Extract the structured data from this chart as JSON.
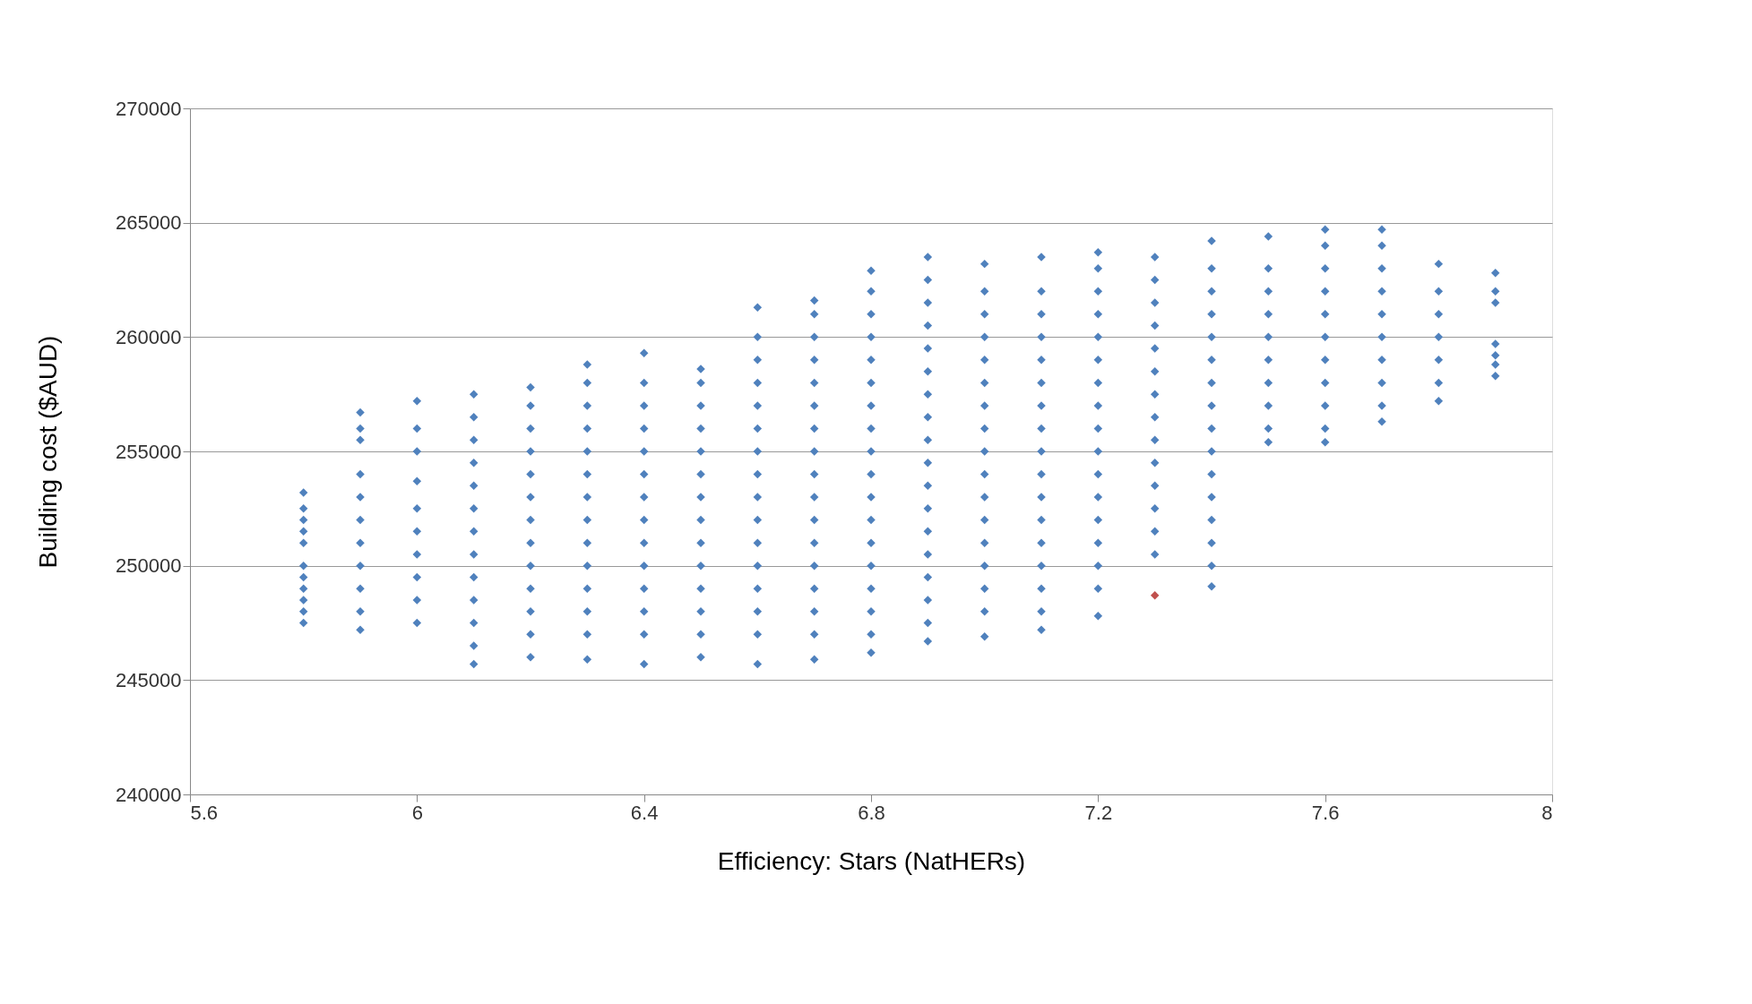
{
  "chart_data": {
    "type": "scatter",
    "xlabel": "Efficiency: Stars        (NatHERs)",
    "ylabel": "Building cost        ($AUD)",
    "xlim": [
      5.6,
      8
    ],
    "xticks": [
      5.6,
      6,
      6.4,
      6.8,
      7.2,
      7.6,
      8
    ],
    "ylim": [
      240000,
      270000
    ],
    "yticks": [
      240000,
      245000,
      250000,
      255000,
      260000,
      265000,
      270000
    ],
    "grid": "y",
    "legend": false,
    "marker": "diamond",
    "series": [
      {
        "color": "#4f81bd",
        "x": [
          5.8,
          5.8,
          5.8,
          5.8,
          5.8,
          5.8,
          5.8,
          5.8,
          5.8,
          5.8,
          5.8,
          5.9,
          5.9,
          5.9,
          5.9,
          5.9,
          5.9,
          5.9,
          5.9,
          5.9,
          5.9,
          5.9,
          6.0,
          6.0,
          6.0,
          6.0,
          6.0,
          6.0,
          6.0,
          6.0,
          6.0,
          6.0,
          6.1,
          6.1,
          6.1,
          6.1,
          6.1,
          6.1,
          6.1,
          6.1,
          6.1,
          6.1,
          6.1,
          6.1,
          6.1,
          6.2,
          6.2,
          6.2,
          6.2,
          6.2,
          6.2,
          6.2,
          6.2,
          6.2,
          6.2,
          6.2,
          6.2,
          6.2,
          6.3,
          6.3,
          6.3,
          6.3,
          6.3,
          6.3,
          6.3,
          6.3,
          6.3,
          6.3,
          6.3,
          6.3,
          6.3,
          6.3,
          6.4,
          6.4,
          6.4,
          6.4,
          6.4,
          6.4,
          6.4,
          6.4,
          6.4,
          6.4,
          6.4,
          6.4,
          6.4,
          6.4,
          6.5,
          6.5,
          6.5,
          6.5,
          6.5,
          6.5,
          6.5,
          6.5,
          6.5,
          6.5,
          6.5,
          6.5,
          6.5,
          6.5,
          6.6,
          6.6,
          6.6,
          6.6,
          6.6,
          6.6,
          6.6,
          6.6,
          6.6,
          6.6,
          6.6,
          6.6,
          6.6,
          6.6,
          6.6,
          6.6,
          6.7,
          6.7,
          6.7,
          6.7,
          6.7,
          6.7,
          6.7,
          6.7,
          6.7,
          6.7,
          6.7,
          6.7,
          6.7,
          6.7,
          6.7,
          6.7,
          6.7,
          6.8,
          6.8,
          6.8,
          6.8,
          6.8,
          6.8,
          6.8,
          6.8,
          6.8,
          6.8,
          6.8,
          6.8,
          6.8,
          6.8,
          6.8,
          6.8,
          6.8,
          6.8,
          6.9,
          6.9,
          6.9,
          6.9,
          6.9,
          6.9,
          6.9,
          6.9,
          6.9,
          6.9,
          6.9,
          6.9,
          6.9,
          6.9,
          6.9,
          6.9,
          6.9,
          6.9,
          7.0,
          7.0,
          7.0,
          7.0,
          7.0,
          7.0,
          7.0,
          7.0,
          7.0,
          7.0,
          7.0,
          7.0,
          7.0,
          7.0,
          7.0,
          7.0,
          7.0,
          7.1,
          7.1,
          7.1,
          7.1,
          7.1,
          7.1,
          7.1,
          7.1,
          7.1,
          7.1,
          7.1,
          7.1,
          7.1,
          7.1,
          7.1,
          7.1,
          7.1,
          7.2,
          7.2,
          7.2,
          7.2,
          7.2,
          7.2,
          7.2,
          7.2,
          7.2,
          7.2,
          7.2,
          7.2,
          7.2,
          7.2,
          7.2,
          7.2,
          7.2,
          7.3,
          7.3,
          7.3,
          7.3,
          7.3,
          7.3,
          7.3,
          7.3,
          7.3,
          7.3,
          7.3,
          7.3,
          7.3,
          7.3,
          7.4,
          7.4,
          7.4,
          7.4,
          7.4,
          7.4,
          7.4,
          7.4,
          7.4,
          7.4,
          7.4,
          7.4,
          7.4,
          7.4,
          7.4,
          7.4,
          7.5,
          7.5,
          7.5,
          7.5,
          7.5,
          7.5,
          7.5,
          7.5,
          7.5,
          7.5,
          7.6,
          7.6,
          7.6,
          7.6,
          7.6,
          7.6,
          7.6,
          7.6,
          7.6,
          7.6,
          7.6,
          7.7,
          7.7,
          7.7,
          7.7,
          7.7,
          7.7,
          7.7,
          7.7,
          7.7,
          7.7,
          7.8,
          7.8,
          7.8,
          7.8,
          7.8,
          7.8,
          7.8,
          7.9,
          7.9,
          7.9,
          7.9,
          7.9,
          7.9,
          7.9
        ],
        "values": [
          247500,
          248000,
          248500,
          249000,
          249500,
          250000,
          251000,
          251500,
          252000,
          252500,
          253200,
          247200,
          248000,
          249000,
          250000,
          251000,
          252000,
          253000,
          254000,
          255500,
          256000,
          256700,
          247500,
          248500,
          249500,
          250500,
          251500,
          252500,
          253700,
          255000,
          256000,
          257200,
          245700,
          246500,
          247500,
          248500,
          249500,
          250500,
          251500,
          252500,
          253500,
          254500,
          255500,
          256500,
          257500,
          246000,
          247000,
          248000,
          249000,
          250000,
          251000,
          252000,
          253000,
          254000,
          255000,
          256000,
          257000,
          257800,
          245900,
          247000,
          248000,
          249000,
          250000,
          251000,
          252000,
          253000,
          254000,
          255000,
          256000,
          257000,
          258000,
          258800,
          245700,
          247000,
          248000,
          249000,
          250000,
          251000,
          252000,
          253000,
          254000,
          255000,
          256000,
          257000,
          258000,
          259300,
          246000,
          247000,
          248000,
          249000,
          250000,
          251000,
          252000,
          253000,
          254000,
          255000,
          256000,
          257000,
          258000,
          258600,
          245700,
          247000,
          248000,
          249000,
          250000,
          251000,
          252000,
          253000,
          254000,
          255000,
          256000,
          257000,
          258000,
          259000,
          260000,
          261300,
          245900,
          247000,
          248000,
          249000,
          250000,
          251000,
          252000,
          253000,
          254000,
          255000,
          256000,
          257000,
          258000,
          259000,
          260000,
          261000,
          261600,
          246200,
          247000,
          248000,
          249000,
          250000,
          251000,
          252000,
          253000,
          254000,
          255000,
          256000,
          257000,
          258000,
          259000,
          260000,
          261000,
          262000,
          262900,
          246700,
          247500,
          248500,
          249500,
          250500,
          251500,
          252500,
          253500,
          254500,
          255500,
          256500,
          257500,
          258500,
          259500,
          260500,
          261500,
          262500,
          263500,
          246900,
          248000,
          249000,
          250000,
          251000,
          252000,
          253000,
          254000,
          255000,
          256000,
          257000,
          258000,
          259000,
          260000,
          261000,
          262000,
          263200,
          247200,
          248000,
          249000,
          250000,
          251000,
          252000,
          253000,
          254000,
          255000,
          256000,
          257000,
          258000,
          259000,
          260000,
          261000,
          262000,
          263500,
          247800,
          249000,
          250000,
          251000,
          252000,
          253000,
          254000,
          255000,
          256000,
          257000,
          258000,
          259000,
          260000,
          261000,
          262000,
          263000,
          263700,
          250500,
          251500,
          252500,
          253500,
          254500,
          255500,
          256500,
          257500,
          258500,
          259500,
          260500,
          261500,
          262500,
          263500,
          249100,
          250000,
          251000,
          252000,
          253000,
          254000,
          255000,
          256000,
          257000,
          258000,
          259000,
          260000,
          261000,
          262000,
          263000,
          264200,
          255400,
          256000,
          257000,
          258000,
          259000,
          260000,
          261000,
          262000,
          263000,
          264400,
          255400,
          256000,
          257000,
          258000,
          259000,
          260000,
          261000,
          262000,
          263000,
          264000,
          264700,
          256300,
          257000,
          258000,
          259000,
          260000,
          261000,
          262000,
          263000,
          264000,
          264700,
          257200,
          258000,
          259000,
          260000,
          261000,
          262000,
          263200,
          258300,
          258800,
          259200,
          259700,
          261500,
          262000,
          262800
        ]
      },
      {
        "color": "#c0504d",
        "x": [
          7.3
        ],
        "values": [
          248700
        ]
      }
    ]
  }
}
